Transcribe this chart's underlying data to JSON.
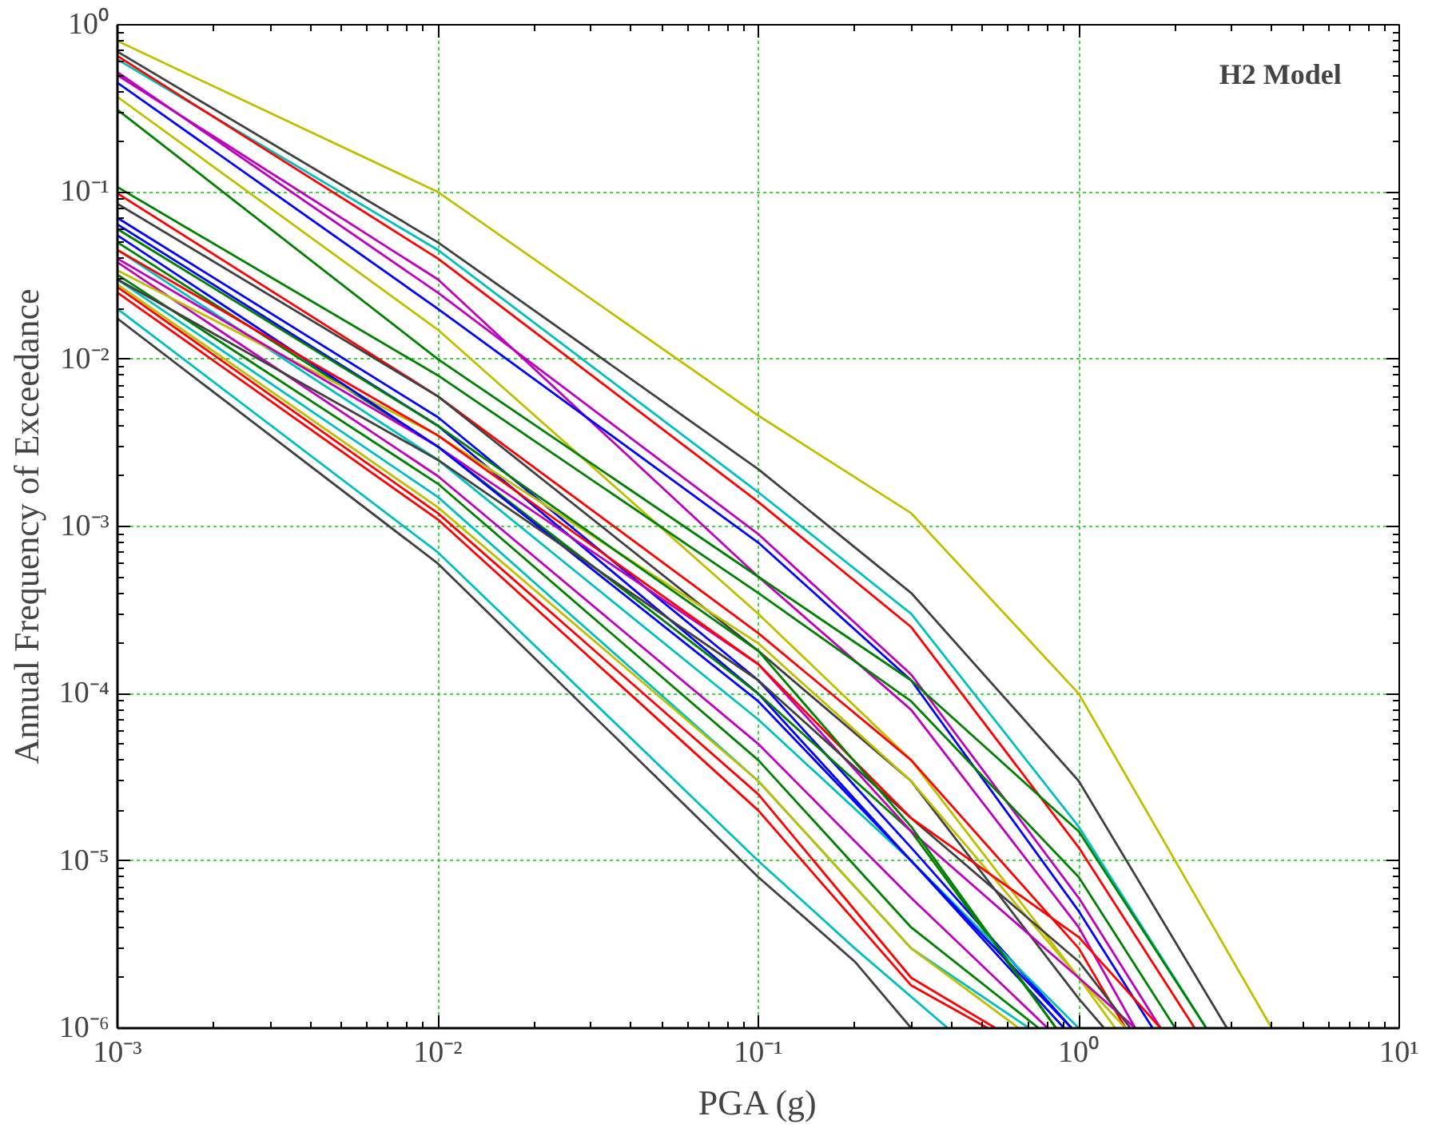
{
  "chart_data": {
    "type": "line",
    "xlabel": "PGA (g)",
    "ylabel": "Annual Frequency of Exceedance",
    "log": "xy",
    "grid": true,
    "annotations": [
      "H2 Model"
    ],
    "xlim": [
      0.001,
      10
    ],
    "ylim": [
      1e-06,
      1
    ],
    "xticks": [
      {
        "value": 0.001,
        "label": "10⁻³"
      },
      {
        "value": 0.01,
        "label": "10⁻²"
      },
      {
        "value": 0.1,
        "label": "10⁻¹"
      },
      {
        "value": 1,
        "label": "10⁰"
      },
      {
        "value": 10,
        "label": "10¹"
      }
    ],
    "yticks": [
      {
        "value": 1e-06,
        "label": "10⁻⁶"
      },
      {
        "value": 1e-05,
        "label": "10⁻⁵"
      },
      {
        "value": 0.0001,
        "label": "10⁻⁴"
      },
      {
        "value": 0.001,
        "label": "10⁻³"
      },
      {
        "value": 0.01,
        "label": "10⁻²"
      },
      {
        "value": 0.1,
        "label": "10⁻¹"
      },
      {
        "value": 1,
        "label": "10⁰"
      }
    ],
    "series": [
      {
        "color": "#bfbf00",
        "x": [
          0.001,
          0.01,
          0.1,
          0.3,
          1,
          2,
          4.0
        ],
        "values": [
          0.8,
          0.1,
          0.0046,
          0.0012,
          0.0001,
          1e-05,
          1e-06
        ]
      },
      {
        "color": "#404040",
        "x": [
          0.001,
          0.01,
          0.1,
          0.3,
          1,
          2.9
        ],
        "values": [
          0.69,
          0.05,
          0.0022,
          0.0004,
          3e-05,
          1e-06
        ]
      },
      {
        "color": "#00bfbf",
        "x": [
          0.001,
          0.01,
          0.1,
          0.3,
          1,
          2.5
        ],
        "values": [
          0.62,
          0.045,
          0.0016,
          0.0003,
          1.6e-05,
          1e-06
        ]
      },
      {
        "color": "#ff0000",
        "x": [
          0.001,
          0.01,
          0.1,
          0.3,
          1,
          2.3
        ],
        "values": [
          0.65,
          0.04,
          0.0014,
          0.00025,
          1.2e-05,
          1e-06
        ]
      },
      {
        "color": "#bf00bf",
        "x": [
          0.001,
          0.01,
          0.1,
          0.3,
          1,
          1.8
        ],
        "values": [
          0.52,
          0.025,
          0.0009,
          0.00013,
          6e-06,
          1e-06
        ]
      },
      {
        "color": "#bf00bf",
        "x": [
          0.001,
          0.01,
          0.1,
          0.3,
          1,
          1.5
        ],
        "values": [
          0.5,
          0.03,
          0.0005,
          8e-05,
          4e-06,
          1e-06
        ]
      },
      {
        "color": "#0000ff",
        "x": [
          0.001,
          0.01,
          0.1,
          0.3,
          1,
          1.7
        ],
        "values": [
          0.45,
          0.02,
          0.0008,
          0.00012,
          5e-06,
          1e-06
        ]
      },
      {
        "color": "#bfbf00",
        "x": [
          0.001,
          0.01,
          0.1,
          0.3,
          1,
          1.3
        ],
        "values": [
          0.37,
          0.015,
          0.0003,
          4e-05,
          2e-06,
          1e-06
        ]
      },
      {
        "color": "#008000",
        "x": [
          0.001,
          0.01,
          0.1,
          0.3,
          1,
          2.5
        ],
        "values": [
          0.31,
          0.01,
          0.0005,
          0.00012,
          1.5e-05,
          1e-06
        ]
      },
      {
        "color": "#008000",
        "x": [
          0.001,
          0.01,
          0.1,
          0.3,
          1,
          2.0
        ],
        "values": [
          0.107,
          0.008,
          0.0004,
          9e-05,
          8e-06,
          1e-06
        ]
      },
      {
        "color": "#ff0000",
        "x": [
          0.001,
          0.01,
          0.1,
          0.3,
          1,
          1.4
        ],
        "values": [
          0.098,
          0.006,
          0.00023,
          4e-05,
          3e-06,
          1e-06
        ]
      },
      {
        "color": "#404040",
        "x": [
          0.001,
          0.01,
          0.1,
          0.3,
          1,
          1.2
        ],
        "values": [
          0.085,
          0.006,
          0.00018,
          3e-05,
          1.5e-06,
          1e-06
        ]
      },
      {
        "color": "#0000ff",
        "x": [
          0.001,
          0.01,
          0.1,
          0.3,
          0.95
        ],
        "values": [
          0.07,
          0.0045,
          0.00012,
          1.2e-05,
          1e-06
        ]
      },
      {
        "color": "#0000ff",
        "x": [
          0.001,
          0.01,
          0.1,
          0.3,
          0.9
        ],
        "values": [
          0.064,
          0.004,
          0.0001,
          1e-05,
          1e-06
        ]
      },
      {
        "color": "#008000",
        "x": [
          0.001,
          0.01,
          0.1,
          0.3,
          0.85
        ],
        "values": [
          0.05,
          0.003,
          0.0001,
          1.5e-05,
          1e-06
        ]
      },
      {
        "color": "#00bfbf",
        "x": [
          0.001,
          0.01,
          0.1,
          0.3,
          1.0
        ],
        "values": [
          0.045,
          0.0025,
          7e-05,
          1e-05,
          1e-06
        ]
      },
      {
        "color": "#bf00bf",
        "x": [
          0.001,
          0.01,
          0.1,
          0.3,
          0.8
        ],
        "values": [
          0.038,
          0.002,
          5e-05,
          6e-06,
          1e-06
        ]
      },
      {
        "color": "#bfbf00",
        "x": [
          0.001,
          0.01,
          0.1,
          0.3,
          1,
          1.4
        ],
        "values": [
          0.034,
          0.0035,
          0.0002,
          3e-05,
          2e-06,
          1e-06
        ]
      },
      {
        "color": "#008000",
        "x": [
          0.001,
          0.01,
          0.1,
          0.3,
          0.75
        ],
        "values": [
          0.032,
          0.0018,
          4e-05,
          4e-06,
          1e-06
        ]
      },
      {
        "color": "#00bfbf",
        "x": [
          0.001,
          0.01,
          0.1,
          0.3,
          0.7
        ],
        "values": [
          0.03,
          0.0015,
          3e-05,
          3e-06,
          1e-06
        ]
      },
      {
        "color": "#ff0000",
        "x": [
          0.001,
          0.01,
          0.1,
          0.3,
          0.55
        ],
        "values": [
          0.027,
          0.0012,
          2.5e-05,
          2e-06,
          1e-06
        ]
      },
      {
        "color": "#ff0000",
        "x": [
          0.001,
          0.01,
          0.1,
          0.3,
          0.52
        ],
        "values": [
          0.025,
          0.0011,
          2e-05,
          1.8e-06,
          1e-06
        ]
      },
      {
        "color": "#bfbf00",
        "x": [
          0.001,
          0.01,
          0.1,
          0.3,
          0.65
        ],
        "values": [
          0.028,
          0.0013,
          3e-05,
          3e-06,
          1e-06
        ]
      },
      {
        "color": "#bf00bf",
        "x": [
          0.001,
          0.01,
          0.1,
          0.3,
          1,
          1.5
        ],
        "values": [
          0.04,
          0.003,
          0.00015,
          1.5e-05,
          2e-06,
          1e-06
        ]
      },
      {
        "color": "#0000ff",
        "x": [
          0.001,
          0.01,
          0.1,
          0.3,
          0.95
        ],
        "values": [
          0.055,
          0.003,
          9e-05,
          1e-05,
          1e-06
        ]
      },
      {
        "color": "#404040",
        "x": [
          0.001,
          0.01,
          0.1,
          0.3,
          1,
          1.45
        ],
        "values": [
          0.03,
          0.0025,
          0.00012,
          1.8e-05,
          2.5e-06,
          1e-06
        ]
      },
      {
        "color": "#ff0000",
        "x": [
          0.001,
          0.01,
          0.1,
          0.3,
          1,
          1.8
        ],
        "values": [
          0.045,
          0.0035,
          0.00015,
          1.8e-05,
          3.5e-06,
          1e-06
        ]
      },
      {
        "color": "#008000",
        "x": [
          0.001,
          0.01,
          0.1,
          0.3,
          0.85
        ],
        "values": [
          0.06,
          0.004,
          0.00018,
          1.6e-05,
          1e-06
        ]
      },
      {
        "color": "#00bfbf",
        "x": [
          0.001,
          0.01,
          0.1,
          0.2,
          0.39
        ],
        "values": [
          0.02,
          0.0007,
          1e-05,
          3e-06,
          1e-06
        ]
      },
      {
        "color": "#404040",
        "x": [
          0.001,
          0.01,
          0.1,
          0.2,
          0.3
        ],
        "values": [
          0.0175,
          0.0006,
          8e-06,
          2.5e-06,
          1e-06
        ]
      }
    ]
  }
}
